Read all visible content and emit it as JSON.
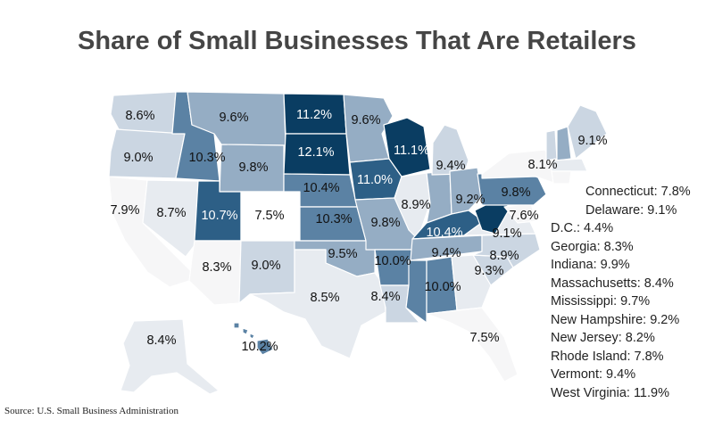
{
  "title": "Share of Small Businesses That Are Retailers",
  "source": "Source: U.S. Small Business Administration",
  "colors": {
    "c1": "#0a3d62",
    "c2": "#2d5f86",
    "c3": "#5b82a4",
    "c4": "#95adc4",
    "c5": "#cbd6e2",
    "c6": "#e7ebf0",
    "c7": "#f6f6f7",
    "c8": "#ffffff"
  },
  "states": [
    {
      "id": "WA",
      "value": "8.6%"
    },
    {
      "id": "OR",
      "value": "9.0%"
    },
    {
      "id": "CA",
      "value": "7.9%"
    },
    {
      "id": "ID",
      "value": "10.3%"
    },
    {
      "id": "NV",
      "value": "8.7%"
    },
    {
      "id": "MT",
      "value": "9.6%"
    },
    {
      "id": "WY",
      "value": "9.8%"
    },
    {
      "id": "UT",
      "value": "10.7%"
    },
    {
      "id": "AZ",
      "value": "8.3%"
    },
    {
      "id": "CO",
      "value": "7.5%"
    },
    {
      "id": "NM",
      "value": "9.0%"
    },
    {
      "id": "ND",
      "value": "11.2%"
    },
    {
      "id": "SD",
      "value": "12.1%"
    },
    {
      "id": "NE",
      "value": "10.4%"
    },
    {
      "id": "KS",
      "value": "10.3%"
    },
    {
      "id": "OK",
      "value": "9.5%"
    },
    {
      "id": "TX",
      "value": "8.5%"
    },
    {
      "id": "MN",
      "value": "9.6%"
    },
    {
      "id": "IA",
      "value": "11.0%"
    },
    {
      "id": "MO",
      "value": "9.8%"
    },
    {
      "id": "AR",
      "value": "10.0%"
    },
    {
      "id": "LA",
      "value": "8.4%"
    },
    {
      "id": "WI",
      "value": "11.1%"
    },
    {
      "id": "IL",
      "value": "8.9%"
    },
    {
      "id": "MI",
      "value": "9.4%"
    },
    {
      "id": "OH",
      "value": "9.2%"
    },
    {
      "id": "KY",
      "value": "10.4%"
    },
    {
      "id": "TN",
      "value": "9.4%"
    },
    {
      "id": "AL",
      "value": "10.0%"
    },
    {
      "id": "FL",
      "value": "7.5%"
    },
    {
      "id": "SC",
      "value": "9.3%"
    },
    {
      "id": "NC",
      "value": "8.9%"
    },
    {
      "id": "VA",
      "value": "9.1%"
    },
    {
      "id": "PA",
      "value": "9.8%"
    },
    {
      "id": "NY",
      "value": "8.1%"
    },
    {
      "id": "ME",
      "value": "9.1%"
    },
    {
      "id": "MD",
      "value": "7.6%"
    },
    {
      "id": "AK",
      "value": "8.4%"
    },
    {
      "id": "HI",
      "value": "10.2%"
    }
  ],
  "legend_list": [
    "Connecticut: 7.8%",
    "Delaware: 9.1%",
    "D.C.: 4.4%",
    "Georgia: 8.3%",
    "Indiana: 9.9%",
    "Massachusetts: 8.4%",
    "Mississippi: 9.7%",
    "New Hampshire: 9.2%",
    "New Jersey: 8.2%",
    "Rhode Island: 7.8%",
    "Vermont: 9.4%",
    "West Virginia: 11.9%"
  ]
}
